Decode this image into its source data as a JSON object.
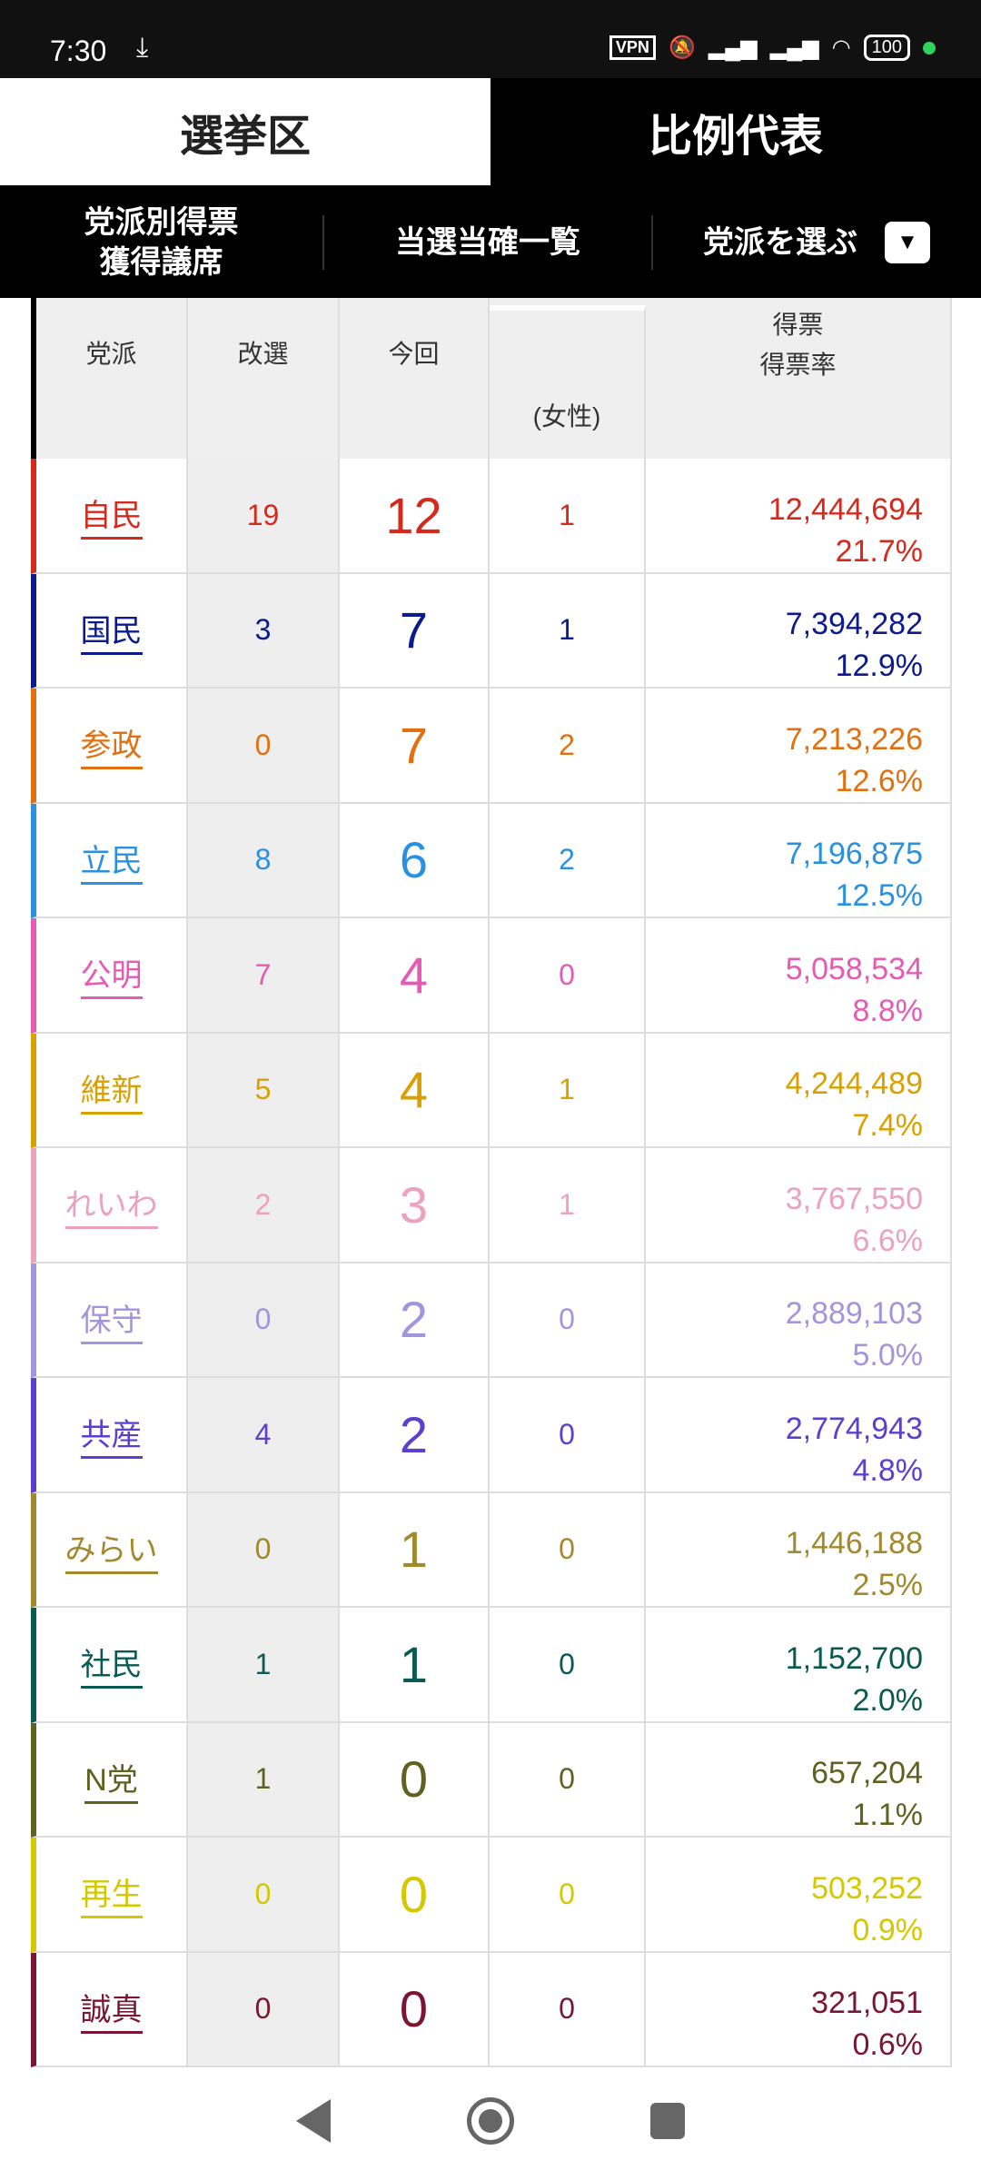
{
  "status": {
    "time": "7:30",
    "vpn": "VPN",
    "battery": "100"
  },
  "tabs": [
    {
      "label": "選挙区",
      "active": true
    },
    {
      "label": "比例代表",
      "active": false
    }
  ],
  "subnav": {
    "item1_line1": "党派別得票",
    "item1_line2": "獲得議席",
    "item2": "当選当確一覧",
    "item3": "党派を選ぶ",
    "dropdown_glyph": "▼"
  },
  "table": {
    "headers": {
      "party": "党派",
      "reelect": "改選",
      "current": "今回",
      "female": "(女性)",
      "votes": "得票",
      "rate": "得票率"
    },
    "rows": [
      {
        "party": "自民",
        "reelect": "19",
        "current": "12",
        "female": "1",
        "votes": "12,444,694",
        "rate": "21.7%",
        "color": "#d42a1e"
      },
      {
        "party": "国民",
        "reelect": "3",
        "current": "7",
        "female": "1",
        "votes": "7,394,282",
        "rate": "12.9%",
        "color": "#0c1a8c"
      },
      {
        "party": "参政",
        "reelect": "0",
        "current": "7",
        "female": "2",
        "votes": "7,213,226",
        "rate": "12.6%",
        "color": "#e3700f"
      },
      {
        "party": "立民",
        "reelect": "8",
        "current": "6",
        "female": "2",
        "votes": "7,196,875",
        "rate": "12.5%",
        "color": "#2a90e0"
      },
      {
        "party": "公明",
        "reelect": "7",
        "current": "4",
        "female": "0",
        "votes": "5,058,534",
        "rate": "8.8%",
        "color": "#e65ab4"
      },
      {
        "party": "維新",
        "reelect": "5",
        "current": "4",
        "female": "1",
        "votes": "4,244,489",
        "rate": "7.4%",
        "color": "#d9a100"
      },
      {
        "party": "れいわ",
        "reelect": "2",
        "current": "3",
        "female": "1",
        "votes": "3,767,550",
        "rate": "6.6%",
        "color": "#eba2ba"
      },
      {
        "party": "保守",
        "reelect": "0",
        "current": "2",
        "female": "0",
        "votes": "2,889,103",
        "rate": "5.0%",
        "color": "#a196dc"
      },
      {
        "party": "共産",
        "reelect": "4",
        "current": "2",
        "female": "0",
        "votes": "2,774,943",
        "rate": "4.8%",
        "color": "#5b3fcf"
      },
      {
        "party": "みらい",
        "reelect": "0",
        "current": "1",
        "female": "0",
        "votes": "1,446,188",
        "rate": "2.5%",
        "color": "#a2892e"
      },
      {
        "party": "社民",
        "reelect": "1",
        "current": "1",
        "female": "0",
        "votes": "1,152,700",
        "rate": "2.0%",
        "color": "#0b5a52"
      },
      {
        "party": "N党",
        "reelect": "1",
        "current": "0",
        "female": "0",
        "votes": "657,204",
        "rate": "1.1%",
        "color": "#5f6120"
      },
      {
        "party": "再生",
        "reelect": "0",
        "current": "0",
        "female": "0",
        "votes": "503,252",
        "rate": "0.9%",
        "color": "#d4c800"
      },
      {
        "party": "誠真",
        "reelect": "0",
        "current": "0",
        "female": "0",
        "votes": "321,051",
        "rate": "0.6%",
        "color": "#7a1633"
      }
    ]
  }
}
